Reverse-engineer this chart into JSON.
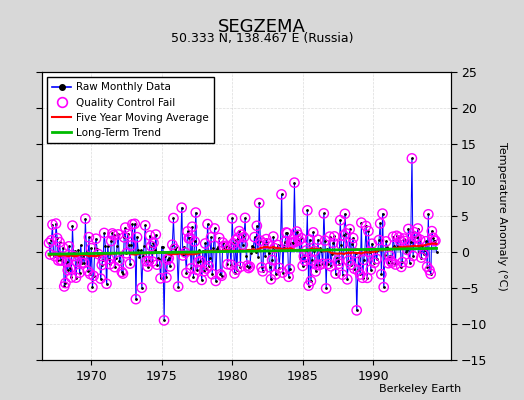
{
  "title": "SEGZEMA",
  "subtitle": "50.333 N, 138.467 E (Russia)",
  "ylabel": "Temperature Anomaly (°C)",
  "credit": "Berkeley Earth",
  "ylim": [
    -15,
    25
  ],
  "yticks": [
    -15,
    -10,
    -5,
    0,
    5,
    10,
    15,
    20,
    25
  ],
  "xlim": [
    1966.5,
    1995.5
  ],
  "xticks": [
    1970,
    1975,
    1980,
    1985,
    1990
  ],
  "bg_color": "#d8d8d8",
  "plot_bg_color": "#ffffff",
  "raw_line_color": "#0000ff",
  "raw_stem_color": "#8888ff",
  "raw_dot_color": "#000000",
  "qc_color": "#ff00ff",
  "ma_color": "#ff0000",
  "trend_color": "#00bb00",
  "grid_color": "#cccccc",
  "seed": 42,
  "start_year": 1967.0,
  "end_year": 1994.5
}
